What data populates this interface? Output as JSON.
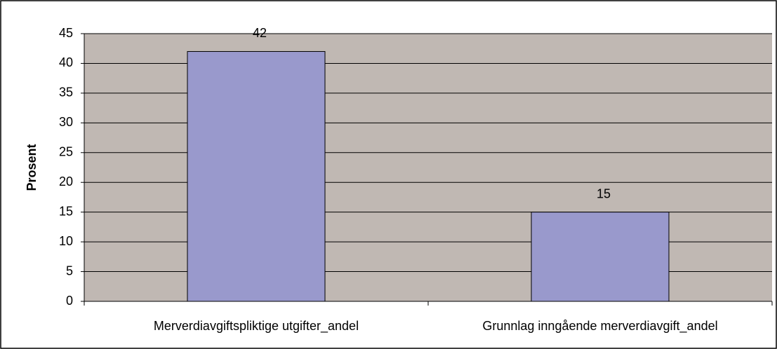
{
  "chart_data": {
    "type": "bar",
    "categories": [
      "Merverdiavgiftspliktige utgifter_andel",
      "Grunnlag inngående merverdiavgift_andel"
    ],
    "values": [
      42,
      15
    ],
    "color": "#9999cc",
    "ylabel": "Prosent",
    "ylim": [
      0,
      45
    ],
    "yticks": [
      0,
      5,
      10,
      15,
      20,
      25,
      30,
      35,
      40,
      45
    ],
    "grid": true
  }
}
